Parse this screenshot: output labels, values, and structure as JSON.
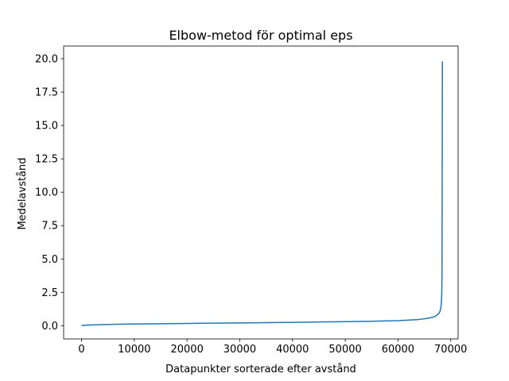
{
  "chart_data": {
    "type": "line",
    "title": "Elbow-metod för optimal eps",
    "xlabel": "Datapunkter sorterade efter avstånd",
    "ylabel": "Medelavstånd",
    "xlim": [
      -3400,
      71400
    ],
    "ylim": [
      -0.99,
      20.95
    ],
    "xticks": [
      0,
      10000,
      20000,
      30000,
      40000,
      50000,
      60000,
      70000
    ],
    "xtick_labels": [
      "0",
      "10000",
      "20000",
      "30000",
      "40000",
      "50000",
      "60000",
      "70000"
    ],
    "yticks": [
      0.0,
      2.5,
      5.0,
      7.5,
      10.0,
      12.5,
      15.0,
      17.5,
      20.0
    ],
    "ytick_labels": [
      "0.0",
      "2.5",
      "5.0",
      "7.5",
      "10.0",
      "12.5",
      "15.0",
      "17.5",
      "20.0"
    ],
    "grid": false,
    "legend": false,
    "color": "#1f77b4",
    "series": [
      {
        "x": [
          0,
          1000,
          3000,
          6000,
          10000,
          15000,
          20000,
          25000,
          30000,
          35000,
          40000,
          45000,
          50000,
          55000,
          58000,
          60000,
          62000,
          64000,
          65000,
          66000,
          66800,
          67300,
          67700,
          68000,
          68150,
          68250,
          68300,
          68330,
          68350,
          68360,
          68380,
          68400,
          68420
        ],
        "y": [
          0.02,
          0.04,
          0.07,
          0.1,
          0.13,
          0.15,
          0.17,
          0.19,
          0.21,
          0.23,
          0.25,
          0.28,
          0.3,
          0.33,
          0.36,
          0.38,
          0.42,
          0.47,
          0.52,
          0.58,
          0.66,
          0.76,
          0.9,
          1.1,
          1.4,
          1.9,
          2.4,
          3.0,
          4.0,
          6.0,
          10.0,
          15.0,
          19.8
        ]
      }
    ]
  }
}
